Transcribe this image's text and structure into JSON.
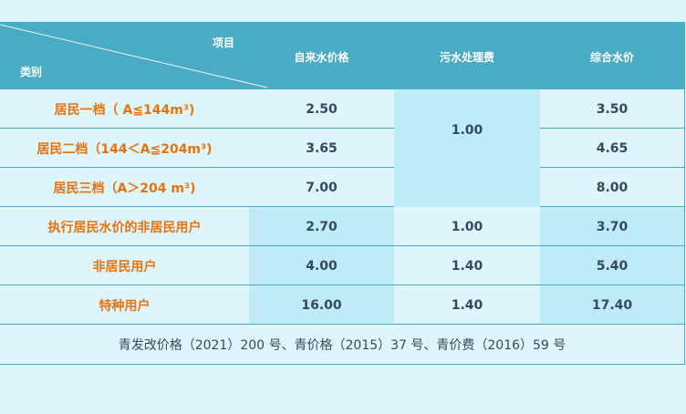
{
  "header": {
    "corner_top": "项目",
    "corner_bottom": "类别",
    "columns": [
      "自来水价格",
      "污水处理费",
      "综合水价"
    ]
  },
  "rows": [
    {
      "category": "居民一档（ A≦144m³)",
      "tap": "2.50",
      "sewage": "1.00",
      "total": "3.50"
    },
    {
      "category": "居民二档（144＜A≦204m³)",
      "tap": "3.65",
      "total": "4.65"
    },
    {
      "category": "居民三档（A＞204 m³)",
      "tap": "7.00",
      "total": "8.00"
    },
    {
      "category": "执行居民水价的非居民用户",
      "tap": "2.70",
      "sewage": "1.00",
      "total": "3.70"
    },
    {
      "category": "非居民用户",
      "tap": "4.00",
      "sewage": "1.40",
      "total": "5.40"
    },
    {
      "category": "特种用户",
      "tap": "16.00",
      "sewage": "1.40",
      "total": "17.40"
    }
  ],
  "footer": "青发改价格（2021）200 号、青价格（2015）37 号、青价费（2016）59 号",
  "colors": {
    "header": "#4aabc5",
    "background": "#ddf5fc",
    "highlight": "#bfeaf7",
    "category_text": "#e8720c",
    "value_text": "#34495e"
  }
}
